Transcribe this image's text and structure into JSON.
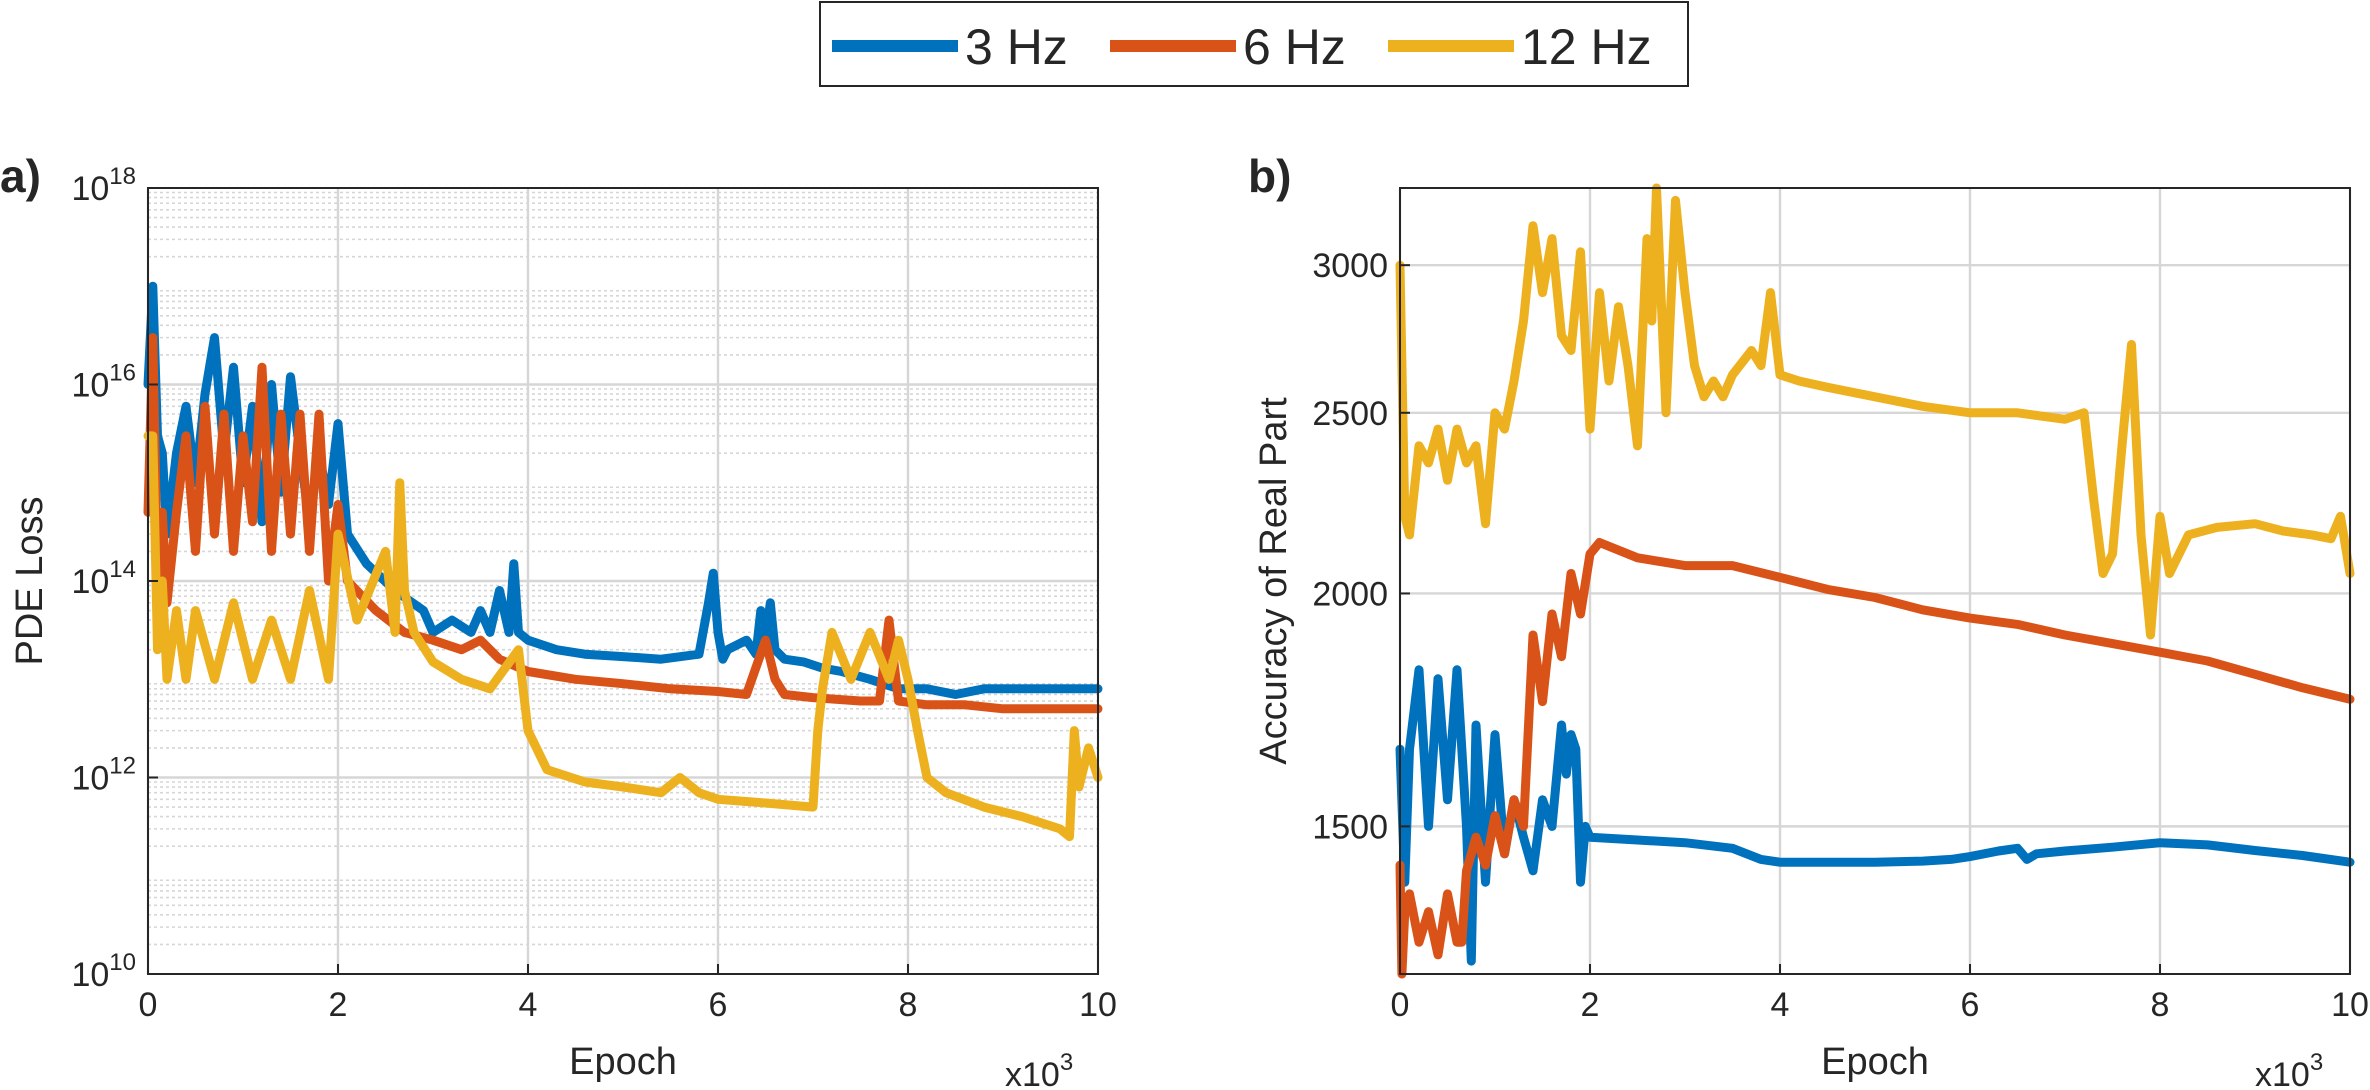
{
  "legend": {
    "entries": [
      {
        "name": "3 Hz",
        "color": "#0072BD"
      },
      {
        "name": "6 Hz",
        "color": "#D95319"
      },
      {
        "name": "12 Hz",
        "color": "#EDB120"
      }
    ]
  },
  "chart_data": [
    {
      "panel_label": "a)",
      "type": "line",
      "xlabel": "Epoch",
      "xscale_label": "x10",
      "xscale_exponent": "3",
      "ylabel": "PDE Loss",
      "yscale": "log",
      "xlim": [
        0,
        10
      ],
      "ylim": [
        10000000000.0,
        1e+18
      ],
      "x_ticks": [
        "0",
        "2",
        "4",
        "6",
        "8",
        "10"
      ],
      "y_ticks": [
        {
          "base": "10",
          "exp": "10"
        },
        {
          "base": "10",
          "exp": "12"
        },
        {
          "base": "10",
          "exp": "14"
        },
        {
          "base": "10",
          "exp": "16"
        },
        {
          "base": "10",
          "exp": "18"
        }
      ],
      "grid": true,
      "series": [
        {
          "name": "3 Hz",
          "color": "#0072BD",
          "x": [
            0,
            0.05,
            0.1,
            0.15,
            0.2,
            0.3,
            0.4,
            0.5,
            0.6,
            0.7,
            0.8,
            0.9,
            1.0,
            1.1,
            1.2,
            1.3,
            1.4,
            1.5,
            1.6,
            1.7,
            1.8,
            1.9,
            2.0,
            2.1,
            2.3,
            2.6,
            2.9,
            3.0,
            3.2,
            3.4,
            3.5,
            3.6,
            3.7,
            3.8,
            3.85,
            3.9,
            4.0,
            4.3,
            4.6,
            5.0,
            5.4,
            5.8,
            5.9,
            5.95,
            6.0,
            6.05,
            6.1,
            6.3,
            6.4,
            6.45,
            6.5,
            6.55,
            6.6,
            6.7,
            6.9,
            7.1,
            7.3,
            7.6,
            7.9,
            8.2,
            8.5,
            8.8,
            9.1,
            9.4,
            9.7,
            10.0
          ],
          "y": [
            1e+16,
            1e+17,
            3000000000000000.0,
            2000000000000000.0,
            300000000000000.0,
            2000000000000000.0,
            6000000000000000.0,
            1000000000000000.0,
            8000000000000000.0,
            3e+16,
            2000000000000000.0,
            1.5e+16,
            1000000000000000.0,
            6000000000000000.0,
            400000000000000.0,
            1e+16,
            800000000000000.0,
            1.2e+16,
            2000000000000000.0,
            400000000000000.0,
            2000000000000000.0,
            600000000000000.0,
            4000000000000000.0,
            300000000000000.0,
            150000000000000.0,
            80000000000000.0,
            50000000000000.0,
            30000000000000.0,
            40000000000000.0,
            30000000000000.0,
            50000000000000.0,
            30000000000000.0,
            80000000000000.0,
            30000000000000.0,
            150000000000000.0,
            30000000000000.0,
            25000000000000.0,
            20000000000000.0,
            18000000000000.0,
            17000000000000.0,
            16000000000000.0,
            18000000000000.0,
            60000000000000.0,
            120000000000000.0,
            30000000000000.0,
            16000000000000.0,
            20000000000000.0,
            25000000000000.0,
            18000000000000.0,
            50000000000000.0,
            25000000000000.0,
            60000000000000.0,
            20000000000000.0,
            16000000000000.0,
            15000000000000.0,
            13000000000000.0,
            12000000000000.0,
            10000000000000.0,
            8000000000000.0,
            8000000000000.0,
            7000000000000.0,
            8000000000000.0,
            8000000000000.0,
            8000000000000.0,
            8000000000000.0,
            8000000000000.0
          ]
        },
        {
          "name": "6 Hz",
          "color": "#D95319",
          "x": [
            0,
            0.05,
            0.1,
            0.15,
            0.2,
            0.3,
            0.4,
            0.5,
            0.6,
            0.7,
            0.8,
            0.9,
            1.0,
            1.1,
            1.2,
            1.3,
            1.4,
            1.5,
            1.6,
            1.7,
            1.8,
            1.9,
            2.0,
            2.1,
            2.4,
            2.7,
            3.0,
            3.3,
            3.5,
            3.7,
            4.0,
            4.5,
            5.0,
            5.5,
            6.0,
            6.3,
            6.5,
            6.6,
            6.7,
            7.0,
            7.5,
            7.7,
            7.8,
            7.9,
            8.2,
            8.6,
            9.0,
            9.5,
            10.0
          ],
          "y": [
            500000000000000.0,
            3e+16,
            100000000000000.0,
            500000000000000.0,
            60000000000000.0,
            500000000000000.0,
            3000000000000000.0,
            200000000000000.0,
            6000000000000000.0,
            300000000000000.0,
            5000000000000000.0,
            200000000000000.0,
            3000000000000000.0,
            400000000000000.0,
            1.5e+16,
            200000000000000.0,
            5000000000000000.0,
            300000000000000.0,
            5000000000000000.0,
            200000000000000.0,
            5000000000000000.0,
            100000000000000.0,
            600000000000000.0,
            100000000000000.0,
            50000000000000.0,
            30000000000000.0,
            25000000000000.0,
            20000000000000.0,
            25000000000000.0,
            16000000000000.0,
            12000000000000.0,
            10000000000000.0,
            9000000000000.0,
            8000000000000.0,
            7500000000000.0,
            7000000000000.0,
            25000000000000.0,
            10000000000000.0,
            7000000000000.0,
            6500000000000.0,
            6000000000000.0,
            6000000000000.0,
            40000000000000.0,
            6000000000000.0,
            5500000000000.0,
            5500000000000.0,
            5000000000000.0,
            5000000000000.0,
            5000000000000.0
          ]
        },
        {
          "name": "12 Hz",
          "color": "#EDB120",
          "x": [
            0,
            0.05,
            0.1,
            0.15,
            0.2,
            0.3,
            0.4,
            0.5,
            0.7,
            0.9,
            1.1,
            1.3,
            1.5,
            1.7,
            1.9,
            2.0,
            2.2,
            2.5,
            2.6,
            2.65,
            2.7,
            2.8,
            3.0,
            3.3,
            3.6,
            3.9,
            4.0,
            4.2,
            4.6,
            5.0,
            5.4,
            5.6,
            5.8,
            6.0,
            6.5,
            7.0,
            7.05,
            7.1,
            7.2,
            7.4,
            7.6,
            7.8,
            7.9,
            8.0,
            8.1,
            8.2,
            8.4,
            8.8,
            9.2,
            9.6,
            9.7,
            9.75,
            9.8,
            9.9,
            10.0
          ],
          "y": [
            3000000000000000.0,
            3000000000000000.0,
            20000000000000.0,
            100000000000000.0,
            10000000000000.0,
            50000000000000.0,
            10000000000000.0,
            50000000000000.0,
            10000000000000.0,
            60000000000000.0,
            10000000000000.0,
            40000000000000.0,
            10000000000000.0,
            80000000000000.0,
            10000000000000.0,
            300000000000000.0,
            40000000000000.0,
            200000000000000.0,
            30000000000000.0,
            1000000000000000.0,
            80000000000000.0,
            30000000000000.0,
            15000000000000.0,
            10000000000000.0,
            8000000000000.0,
            20000000000000.0,
            3000000000000.0,
            1200000000000.0,
            900000000000.0,
            800000000000.0,
            700000000000.0,
            1000000000000.0,
            700000000000.0,
            600000000000.0,
            550000000000.0,
            500000000000.0,
            3000000000000.0,
            8000000000000.0,
            30000000000000.0,
            10000000000000.0,
            30000000000000.0,
            10000000000000.0,
            25000000000000.0,
            10000000000000.0,
            3000000000000.0,
            1000000000000.0,
            700000000000.0,
            500000000000.0,
            400000000000.0,
            300000000000.0,
            250000000000.0,
            3000000000000.0,
            800000000000.0,
            2000000000000.0,
            1000000000000.0
          ]
        }
      ]
    },
    {
      "panel_label": "b)",
      "type": "line",
      "xlabel": "Epoch",
      "xscale_label": "x10",
      "xscale_exponent": "3",
      "ylabel": "Accuracy of Real Part",
      "yscale": "log",
      "xlim": [
        0,
        10
      ],
      "ylim": [
        1250,
        3300
      ],
      "x_ticks": [
        "0",
        "2",
        "4",
        "6",
        "8",
        "10"
      ],
      "y_ticks": [
        "1500",
        "2000",
        "2500",
        "3000"
      ],
      "grid": true,
      "series": [
        {
          "name": "3 Hz",
          "color": "#0072BD",
          "x": [
            0,
            0.05,
            0.1,
            0.2,
            0.3,
            0.4,
            0.5,
            0.6,
            0.7,
            0.75,
            0.8,
            0.9,
            1.0,
            1.1,
            1.2,
            1.3,
            1.4,
            1.5,
            1.6,
            1.7,
            1.75,
            1.8,
            1.85,
            1.9,
            1.95,
            2.0,
            2.5,
            3.0,
            3.5,
            3.8,
            4.0,
            4.5,
            5.0,
            5.5,
            5.8,
            6.0,
            6.3,
            6.5,
            6.6,
            6.7,
            7.0,
            7.5,
            8.0,
            8.5,
            9.0,
            9.5,
            10.0
          ],
          "y": [
            1650,
            1400,
            1650,
            1820,
            1500,
            1800,
            1550,
            1820,
            1500,
            1270,
            1700,
            1400,
            1680,
            1450,
            1550,
            1480,
            1420,
            1550,
            1500,
            1700,
            1600,
            1680,
            1650,
            1400,
            1500,
            1480,
            1475,
            1470,
            1460,
            1440,
            1435,
            1435,
            1435,
            1437,
            1440,
            1445,
            1455,
            1460,
            1440,
            1450,
            1455,
            1462,
            1470,
            1466,
            1456,
            1447,
            1435
          ]
        },
        {
          "name": "6 Hz",
          "color": "#D95319",
          "x": [
            0,
            0.02,
            0.05,
            0.1,
            0.2,
            0.3,
            0.4,
            0.5,
            0.6,
            0.65,
            0.7,
            0.8,
            0.9,
            1.0,
            1.1,
            1.2,
            1.3,
            1.4,
            1.5,
            1.6,
            1.7,
            1.8,
            1.9,
            2.0,
            2.1,
            2.5,
            3.0,
            3.5,
            4.0,
            4.5,
            5.0,
            5.5,
            6.0,
            6.5,
            7.0,
            7.5,
            8.0,
            8.5,
            9.0,
            9.5,
            10.0
          ],
          "y": [
            1430,
            1250,
            1350,
            1380,
            1300,
            1350,
            1280,
            1380,
            1300,
            1300,
            1420,
            1480,
            1430,
            1520,
            1450,
            1550,
            1500,
            1900,
            1750,
            1950,
            1850,
            2050,
            1950,
            2100,
            2130,
            2090,
            2070,
            2070,
            2040,
            2010,
            1990,
            1960,
            1940,
            1925,
            1900,
            1880,
            1860,
            1840,
            1810,
            1780,
            1755
          ]
        },
        {
          "name": "12 Hz",
          "color": "#EDB120",
          "x": [
            0,
            0.05,
            0.1,
            0.2,
            0.3,
            0.4,
            0.5,
            0.6,
            0.7,
            0.8,
            0.9,
            1.0,
            1.1,
            1.2,
            1.3,
            1.4,
            1.5,
            1.6,
            1.7,
            1.8,
            1.9,
            2.0,
            2.1,
            2.2,
            2.3,
            2.4,
            2.5,
            2.6,
            2.65,
            2.7,
            2.8,
            2.9,
            3.0,
            3.1,
            3.2,
            3.3,
            3.4,
            3.5,
            3.7,
            3.8,
            3.9,
            4.0,
            4.2,
            4.5,
            5.0,
            5.5,
            6.0,
            6.5,
            7.0,
            7.2,
            7.3,
            7.4,
            7.5,
            7.6,
            7.7,
            7.8,
            7.9,
            8.0,
            8.1,
            8.3,
            8.6,
            9.0,
            9.3,
            9.6,
            9.8,
            9.9,
            10.0
          ],
          "y": [
            3000,
            2200,
            2150,
            2400,
            2350,
            2450,
            2300,
            2450,
            2350,
            2400,
            2180,
            2500,
            2450,
            2600,
            2800,
            3150,
            2900,
            3100,
            2750,
            2700,
            3050,
            2450,
            2900,
            2600,
            2850,
            2650,
            2400,
            3100,
            2800,
            3300,
            2500,
            3250,
            2900,
            2650,
            2550,
            2600,
            2550,
            2620,
            2700,
            2650,
            2900,
            2620,
            2600,
            2580,
            2550,
            2520,
            2500,
            2500,
            2480,
            2500,
            2250,
            2050,
            2100,
            2400,
            2720,
            2150,
            1900,
            2200,
            2050,
            2150,
            2170,
            2180,
            2160,
            2150,
            2140,
            2200,
            2050
          ]
        }
      ]
    }
  ]
}
